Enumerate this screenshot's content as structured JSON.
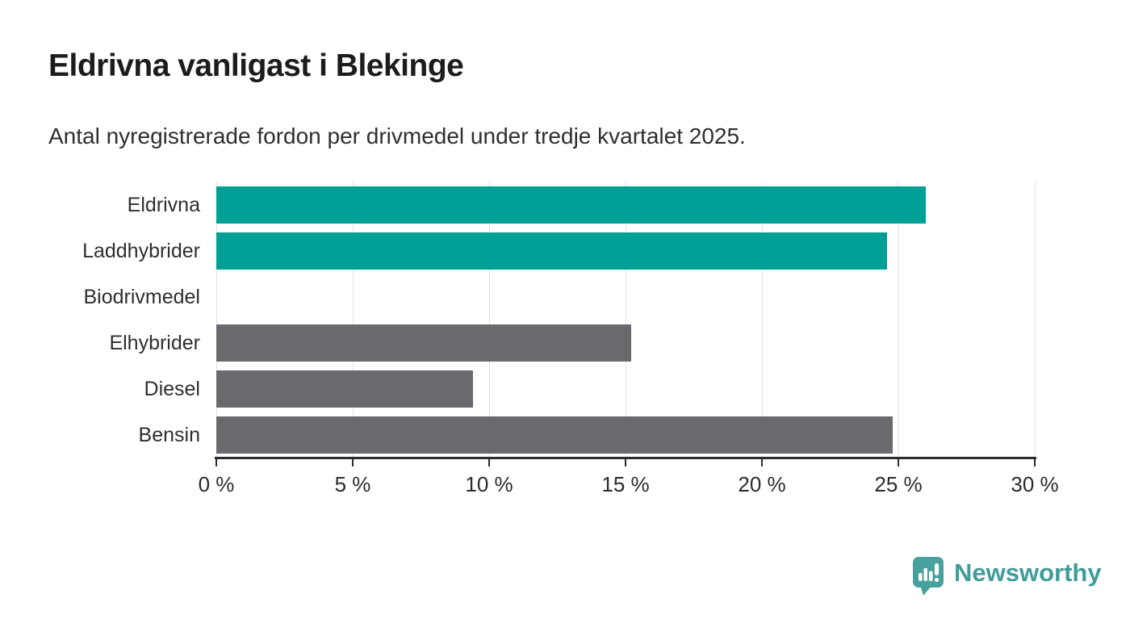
{
  "header": {
    "title": "Eldrivna vanligast i Blekinge",
    "subtitle": "Antal nyregistrerade fordon per drivmedel under tredje kvartalet 2025."
  },
  "chart_data": {
    "type": "bar",
    "orientation": "horizontal",
    "title": "Eldrivna vanligast i Blekinge",
    "subtitle": "Antal nyregistrerade fordon per drivmedel under tredje kvartalet 2025.",
    "categories": [
      "Eldrivna",
      "Laddhybrider",
      "Biodrivmedel",
      "Elhybrider",
      "Diesel",
      "Bensin"
    ],
    "values": [
      26.0,
      24.6,
      0,
      15.2,
      9.4,
      24.8
    ],
    "unit": "%",
    "xlim": [
      0,
      30
    ],
    "x_ticks": [
      0,
      5,
      10,
      15,
      20,
      25,
      30
    ],
    "x_tick_labels": [
      "0 %",
      "5 %",
      "10 %",
      "15 %",
      "20 %",
      "25 %",
      "30 %"
    ],
    "bar_colors": [
      "#00a096",
      "#00a096",
      "#6a696e",
      "#6a696e",
      "#6a696e",
      "#6a696e"
    ],
    "highlight_color": "#00a096",
    "default_color": "#6a696e",
    "gridline_color": "#e2e2e2",
    "axis_color": "#2b2b2b",
    "grid": true,
    "legend": false
  },
  "footer": {
    "logo_text": "Newsworthy",
    "logo_color": "#3f9c99",
    "logo_icon": "speech-bubble-bar-chart-exclamation"
  }
}
